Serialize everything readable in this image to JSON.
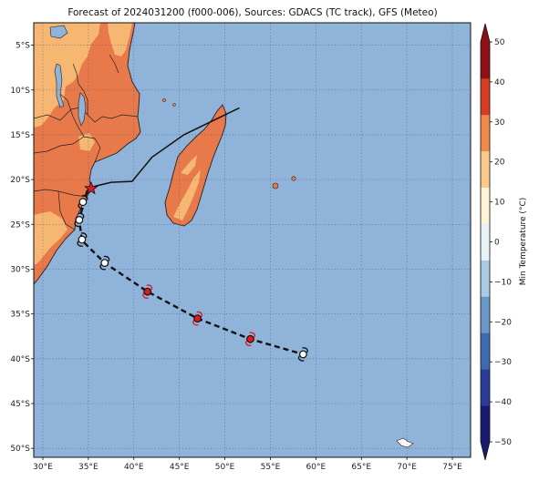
{
  "title": "Forecast of 2024031200 (f000-006), Sources: GDACS (TC track), GFS (Meteo)",
  "map": {
    "lon_range": [
      29,
      77
    ],
    "lat_range": [
      -51,
      -2.5
    ],
    "grid": true,
    "ocean_color": "#8fb3d9",
    "x_ticks": [
      {
        "lon": 30,
        "label": "30°E"
      },
      {
        "lon": 35,
        "label": "35°E"
      },
      {
        "lon": 40,
        "label": "40°E"
      },
      {
        "lon": 45,
        "label": "45°E"
      },
      {
        "lon": 50,
        "label": "50°E"
      },
      {
        "lon": 55,
        "label": "55°E"
      },
      {
        "lon": 60,
        "label": "60°E"
      },
      {
        "lon": 65,
        "label": "65°E"
      },
      {
        "lon": 70,
        "label": "70°E"
      },
      {
        "lon": 75,
        "label": "75°E"
      }
    ],
    "y_ticks": [
      {
        "lat": -5,
        "label": "5°S"
      },
      {
        "lat": -10,
        "label": "10°S"
      },
      {
        "lat": -15,
        "label": "15°S"
      },
      {
        "lat": -20,
        "label": "20°S"
      },
      {
        "lat": -25,
        "label": "25°S"
      },
      {
        "lat": -30,
        "label": "30°S"
      },
      {
        "lat": -35,
        "label": "35°S"
      },
      {
        "lat": -40,
        "label": "40°S"
      },
      {
        "lat": -45,
        "label": "45°S"
      },
      {
        "lat": -50,
        "label": "50°S"
      }
    ]
  },
  "track": {
    "past": [
      [
        51.6,
        -12.0
      ],
      [
        45.5,
        -15.0
      ],
      [
        42.0,
        -17.5
      ],
      [
        39.8,
        -20.2
      ],
      [
        37.5,
        -20.3
      ],
      [
        35.5,
        -20.8
      ],
      [
        34.9,
        -21.2
      ]
    ],
    "forecast": [
      [
        34.9,
        -21.2
      ],
      [
        34.5,
        -22.5
      ],
      [
        34.0,
        -24.5
      ],
      [
        34.3,
        -26.8
      ],
      [
        36.8,
        -29.3
      ],
      [
        41.5,
        -32.5
      ],
      [
        47.0,
        -35.5
      ],
      [
        52.8,
        -37.8
      ],
      [
        58.6,
        -39.5
      ]
    ],
    "landfall": [
      35.3,
      -21.0
    ],
    "markers": [
      {
        "lon": 34.4,
        "lat": -22.5,
        "color": "white"
      },
      {
        "lon": 34.0,
        "lat": -24.5,
        "color": "white"
      },
      {
        "lon": 34.3,
        "lat": -26.7,
        "color": "white"
      },
      {
        "lon": 36.8,
        "lat": -29.3,
        "color": "white"
      },
      {
        "lon": 41.5,
        "lat": -32.5,
        "color": "red"
      },
      {
        "lon": 47.0,
        "lat": -35.5,
        "color": "red"
      },
      {
        "lon": 52.8,
        "lat": -37.8,
        "color": "red"
      },
      {
        "lon": 58.6,
        "lat": -39.5,
        "color": "white"
      }
    ]
  },
  "colorbar": {
    "label": "Min Temperature (°C)",
    "min": -50,
    "max": 50,
    "step": 10,
    "tick_labels": [
      "50",
      "40",
      "30",
      "20",
      "10",
      "0",
      "−10",
      "−20",
      "−30",
      "−40",
      "−50"
    ],
    "colors": [
      "#1a1a6e",
      "#2a3c9a",
      "#3f6ab0",
      "#6a97c8",
      "#a9cbe3",
      "#e8f3f9",
      "#fdf3d6",
      "#f9c98a",
      "#f08a4b",
      "#d83c23",
      "#8e0f15"
    ]
  }
}
